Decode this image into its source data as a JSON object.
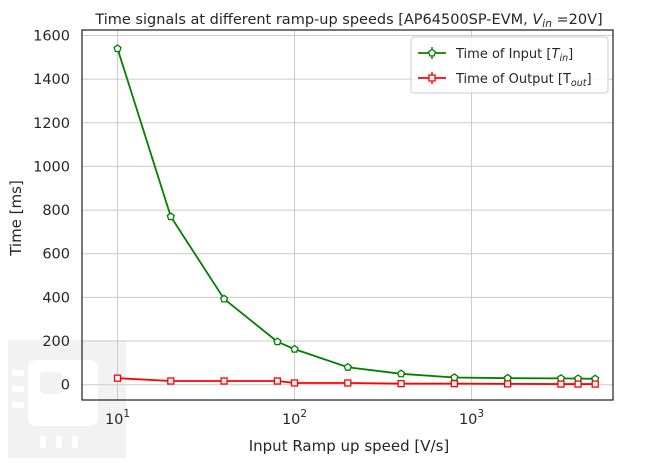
{
  "chart_data": {
    "type": "line",
    "title": {
      "main": "Time signals at different ramp-up speeds [AP64500SP-EVM, ",
      "var": "V",
      "sub": "in",
      "tail": " =20V]"
    },
    "xlabel": "Input Ramp up speed [V/s]",
    "ylabel": "Time [ms]",
    "x_scale": "log",
    "xlim": [
      6.3,
      6300
    ],
    "ylim": [
      -70,
      1625
    ],
    "x_ticks": [
      {
        "value": 10,
        "base": "10",
        "exp": "1"
      },
      {
        "value": 100,
        "base": "10",
        "exp": "2"
      },
      {
        "value": 1000,
        "base": "10",
        "exp": "3"
      }
    ],
    "y_ticks": [
      "0",
      "200",
      "400",
      "600",
      "800",
      "1000",
      "1200",
      "1400",
      "1600"
    ],
    "grid": true,
    "legend_position": "top-right",
    "x": [
      10,
      20,
      40,
      80,
      100,
      200,
      400,
      800,
      1600,
      3200,
      4000,
      5000
    ],
    "series": [
      {
        "name": "Time of Input [",
        "name_var": "T",
        "name_sub": "in",
        "name_end": "]",
        "color": "#008000",
        "marker": "pentagon",
        "values": [
          1540,
          770,
          393,
          197,
          163,
          80,
          50,
          33,
          30,
          29,
          28,
          27
        ]
      },
      {
        "name": "Time of Output [T",
        "name_var": "",
        "name_sub": "out",
        "name_end": "]",
        "color": "#ff0000",
        "marker": "square",
        "values": [
          30,
          17,
          17,
          17,
          8,
          8,
          5,
          5,
          4,
          3,
          3,
          3
        ]
      }
    ]
  }
}
